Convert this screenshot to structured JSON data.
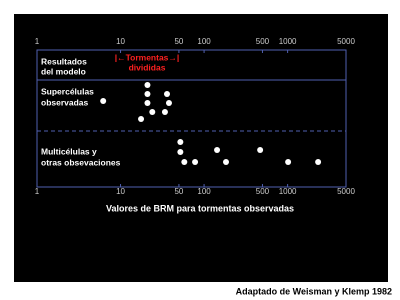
{
  "chart_data": {
    "type": "strip",
    "xlabel": "Valores de BRM para tormentas observadas",
    "source": "Adaptado de Weisman y Klemp 1982",
    "annotation": [
      "|←Tormentas→|",
      "divididas"
    ],
    "log_x": true,
    "xlim": [
      1,
      5000
    ],
    "xticks": [
      1,
      10,
      50,
      100,
      500,
      1000,
      5000
    ],
    "categories": [
      [
        "Resultados",
        "del modelo"
      ],
      [
        "Supercélulas",
        "observadas"
      ],
      [
        "Multicélulas y",
        "otras obsevaciones"
      ]
    ],
    "series": [
      {
        "color": "#ffffff",
        "values": []
      },
      {
        "color": "#ffffff",
        "values": [
          6.2,
          21,
          21,
          21,
          36,
          38,
          24,
          34,
          17.6
        ]
      },
      {
        "color": "#ffffff",
        "values": [
          52,
          52,
          58,
          78,
          143,
          183,
          469,
          1014,
          2318
        ]
      }
    ],
    "axis_color": "#5060b0",
    "annotation_color": "#ff2020"
  }
}
